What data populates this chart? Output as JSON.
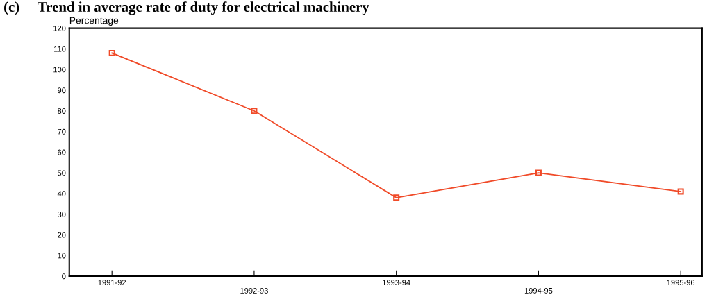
{
  "chart_data": {
    "type": "line",
    "title": "(c)     Trend in average rate of duty for electrical machinery",
    "ylabel": "Percentage",
    "categories": [
      "1991-92",
      "1992-93",
      "1993-94",
      "1994-95",
      "1995-96"
    ],
    "series": [
      {
        "color": "#f04a28",
        "values": [
          108,
          80,
          38,
          50,
          41
        ]
      }
    ],
    "ylim": [
      0,
      120
    ],
    "yticks": [
      0,
      10,
      20,
      30,
      40,
      50,
      60,
      70,
      80,
      90,
      100,
      110,
      120
    ],
    "grid": false,
    "legend": false,
    "marker": "square",
    "line_style": "solid"
  }
}
